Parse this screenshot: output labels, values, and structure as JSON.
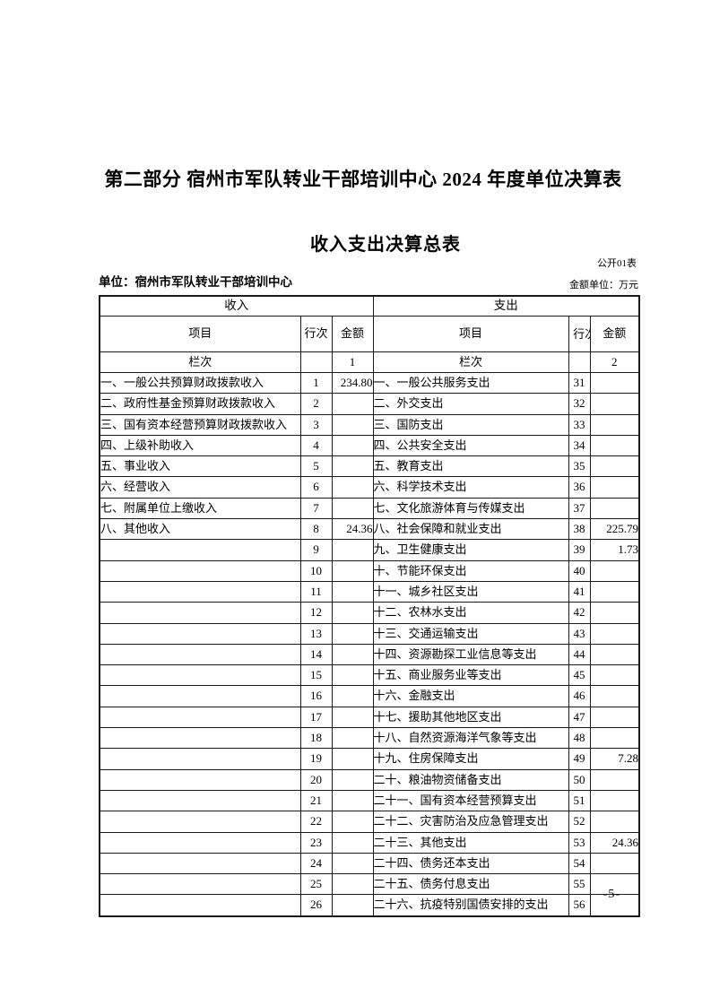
{
  "page": {
    "part_title": "第二部分 宿州市军队转业干部培训中心 2024 年度单位决算表",
    "table_title": "收入支出决算总表",
    "form_code": "公开01表",
    "unit_label": "单位：宿州市军队转业干部培训中心",
    "amount_unit_label": "金额单位：万元",
    "page_number": "-5-"
  },
  "table": {
    "income_header": "收入",
    "expense_header": "支出",
    "col_item": "项目",
    "col_line": "行次",
    "col_amount": "金额",
    "col_index_label": "栏次",
    "income_col_index": "1",
    "expense_col_index": "2",
    "rows": [
      {
        "income_item": "一、一般公共预算财政拨款收入",
        "income_line": "1",
        "income_amount": "234.80",
        "expense_item": "一、一般公共服务支出",
        "expense_line": "31",
        "expense_amount": ""
      },
      {
        "income_item": "二、政府性基金预算财政拨款收入",
        "income_line": "2",
        "income_amount": "",
        "expense_item": "二、外交支出",
        "expense_line": "32",
        "expense_amount": ""
      },
      {
        "income_item": "三、国有资本经营预算财政拨款收入",
        "income_line": "3",
        "income_amount": "",
        "expense_item": "三、国防支出",
        "expense_line": "33",
        "expense_amount": ""
      },
      {
        "income_item": "四、上级补助收入",
        "income_line": "4",
        "income_amount": "",
        "expense_item": "四、公共安全支出",
        "expense_line": "34",
        "expense_amount": ""
      },
      {
        "income_item": "五、事业收入",
        "income_line": "5",
        "income_amount": "",
        "expense_item": "五、教育支出",
        "expense_line": "35",
        "expense_amount": ""
      },
      {
        "income_item": "六、经营收入",
        "income_line": "6",
        "income_amount": "",
        "expense_item": "六、科学技术支出",
        "expense_line": "36",
        "expense_amount": ""
      },
      {
        "income_item": "七、附属单位上缴收入",
        "income_line": "7",
        "income_amount": "",
        "expense_item": "七、文化旅游体育与传媒支出",
        "expense_line": "37",
        "expense_amount": ""
      },
      {
        "income_item": "八、其他收入",
        "income_line": "8",
        "income_amount": "24.36",
        "expense_item": "八、社会保障和就业支出",
        "expense_line": "38",
        "expense_amount": "225.79"
      },
      {
        "income_item": "",
        "income_line": "9",
        "income_amount": "",
        "expense_item": "九、卫生健康支出",
        "expense_line": "39",
        "expense_amount": "1.73"
      },
      {
        "income_item": "",
        "income_line": "10",
        "income_amount": "",
        "expense_item": "十、节能环保支出",
        "expense_line": "40",
        "expense_amount": ""
      },
      {
        "income_item": "",
        "income_line": "11",
        "income_amount": "",
        "expense_item": "十一、城乡社区支出",
        "expense_line": "41",
        "expense_amount": ""
      },
      {
        "income_item": "",
        "income_line": "12",
        "income_amount": "",
        "expense_item": "十二、农林水支出",
        "expense_line": "42",
        "expense_amount": ""
      },
      {
        "income_item": "",
        "income_line": "13",
        "income_amount": "",
        "expense_item": "十三、交通运输支出",
        "expense_line": "43",
        "expense_amount": ""
      },
      {
        "income_item": "",
        "income_line": "14",
        "income_amount": "",
        "expense_item": "十四、资源勘探工业信息等支出",
        "expense_line": "44",
        "expense_amount": ""
      },
      {
        "income_item": "",
        "income_line": "15",
        "income_amount": "",
        "expense_item": "十五、商业服务业等支出",
        "expense_line": "45",
        "expense_amount": ""
      },
      {
        "income_item": "",
        "income_line": "16",
        "income_amount": "",
        "expense_item": "十六、金融支出",
        "expense_line": "46",
        "expense_amount": ""
      },
      {
        "income_item": "",
        "income_line": "17",
        "income_amount": "",
        "expense_item": "十七、援助其他地区支出",
        "expense_line": "47",
        "expense_amount": ""
      },
      {
        "income_item": "",
        "income_line": "18",
        "income_amount": "",
        "expense_item": "十八、自然资源海洋气象等支出",
        "expense_line": "48",
        "expense_amount": ""
      },
      {
        "income_item": "",
        "income_line": "19",
        "income_amount": "",
        "expense_item": "十九、住房保障支出",
        "expense_line": "49",
        "expense_amount": "7.28"
      },
      {
        "income_item": "",
        "income_line": "20",
        "income_amount": "",
        "expense_item": "二十、粮油物资储备支出",
        "expense_line": "50",
        "expense_amount": ""
      },
      {
        "income_item": "",
        "income_line": "21",
        "income_amount": "",
        "expense_item": "二十一、国有资本经营预算支出",
        "expense_line": "51",
        "expense_amount": ""
      },
      {
        "income_item": "",
        "income_line": "22",
        "income_amount": "",
        "expense_item": "二十二、灾害防治及应急管理支出",
        "expense_line": "52",
        "expense_amount": ""
      },
      {
        "income_item": "",
        "income_line": "23",
        "income_amount": "",
        "expense_item": "二十三、其他支出",
        "expense_line": "53",
        "expense_amount": "24.36"
      },
      {
        "income_item": "",
        "income_line": "24",
        "income_amount": "",
        "expense_item": "二十四、债务还本支出",
        "expense_line": "54",
        "expense_amount": ""
      },
      {
        "income_item": "",
        "income_line": "25",
        "income_amount": "",
        "expense_item": "二十五、债务付息支出",
        "expense_line": "55",
        "expense_amount": ""
      },
      {
        "income_item": "",
        "income_line": "26",
        "income_amount": "",
        "expense_item": "二十六、抗疫特别国债安排的支出",
        "expense_line": "56",
        "expense_amount": ""
      }
    ]
  }
}
